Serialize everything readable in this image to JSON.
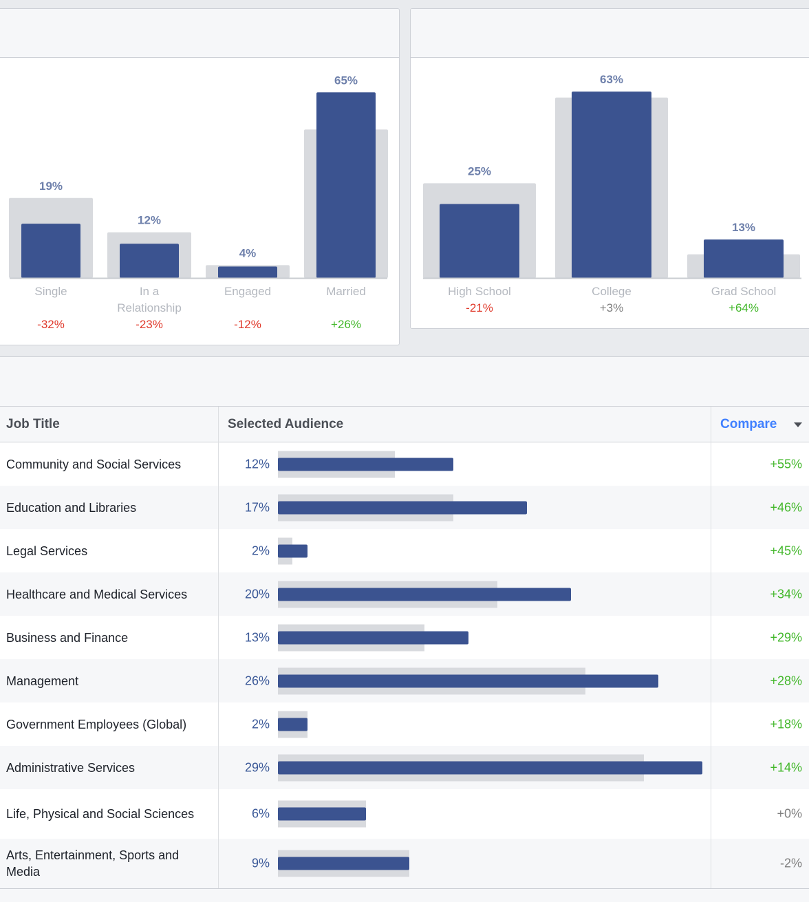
{
  "relationship_chart": {
    "bars": [
      {
        "label": "19%",
        "value": 19,
        "baseline": 28,
        "category": "Single",
        "change": "-32%",
        "trend": "neg"
      },
      {
        "label": "12%",
        "value": 12,
        "baseline": 16,
        "category": "In a Relationship",
        "change": "-23%",
        "trend": "neg"
      },
      {
        "label": "4%",
        "value": 4,
        "baseline": 4.5,
        "category": "Engaged",
        "change": "-12%",
        "trend": "neg"
      },
      {
        "label": "65%",
        "value": 65,
        "baseline": 52,
        "category": "Married",
        "change": "+26%",
        "trend": "pos"
      }
    ]
  },
  "education_chart": {
    "bars": [
      {
        "label": "25%",
        "value": 25,
        "baseline": 32,
        "category": "High School",
        "change": "-21%",
        "trend": "neg"
      },
      {
        "label": "63%",
        "value": 63,
        "baseline": 61,
        "category": "College",
        "change": "+3%",
        "trend": "neu"
      },
      {
        "label": "13%",
        "value": 13,
        "baseline": 8,
        "category": "Grad School",
        "change": "+64%",
        "trend": "pos"
      }
    ]
  },
  "job_table": {
    "headers": {
      "job": "Job Title",
      "audience": "Selected Audience",
      "compare": "Compare"
    },
    "rows": [
      {
        "job": "Community and Social Services",
        "pct": "12%",
        "value": 12,
        "baseline": 8,
        "change": "+55%",
        "trend": "pos"
      },
      {
        "job": "Education and Libraries",
        "pct": "17%",
        "value": 17,
        "baseline": 12,
        "change": "+46%",
        "trend": "pos"
      },
      {
        "job": "Legal Services",
        "pct": "2%",
        "value": 2,
        "baseline": 1,
        "change": "+45%",
        "trend": "pos"
      },
      {
        "job": "Healthcare and Medical Services",
        "pct": "20%",
        "value": 20,
        "baseline": 15,
        "change": "+34%",
        "trend": "pos"
      },
      {
        "job": "Business and Finance",
        "pct": "13%",
        "value": 13,
        "baseline": 10,
        "change": "+29%",
        "trend": "pos"
      },
      {
        "job": "Management",
        "pct": "26%",
        "value": 26,
        "baseline": 21,
        "change": "+28%",
        "trend": "pos"
      },
      {
        "job": "Government Employees (Global)",
        "pct": "2%",
        "value": 2,
        "baseline": 2,
        "change": "+18%",
        "trend": "pos"
      },
      {
        "job": "Administrative Services",
        "pct": "29%",
        "value": 29,
        "baseline": 25,
        "change": "+14%",
        "trend": "pos"
      },
      {
        "job": "Life, Physical and Social Sciences",
        "pct": "6%",
        "value": 6,
        "baseline": 6,
        "change": "+0%",
        "trend": "neu"
      },
      {
        "job": "Arts, Entertainment, Sports and Media",
        "pct": "9%",
        "value": 9,
        "baseline": 9,
        "change": "-2%",
        "trend": "neu"
      }
    ]
  },
  "colors": {
    "bar": "#3b5390",
    "baseline": "#d8dade",
    "positive": "#42b72a",
    "negative": "#e0392b",
    "neutral": "#7f7f7f",
    "link": "#4080ff"
  }
}
